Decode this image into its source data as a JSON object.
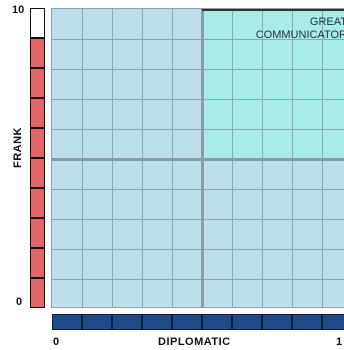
{
  "y_axis": {
    "title": "FRANK",
    "min_label": "0",
    "max_label": "10",
    "segment_colors": [
      "#ffffff",
      "#e06565"
    ]
  },
  "x_axis": {
    "title": "DIPLOMATIC",
    "min_label": "0",
    "max_label": "1",
    "segment_color": "#1f4a8a"
  },
  "quadrant": {
    "line1": "GREAT",
    "line2": "COMMUNICATOR",
    "color": "#a7ece6"
  },
  "grid": {
    "background": "#bcdfe9"
  }
}
